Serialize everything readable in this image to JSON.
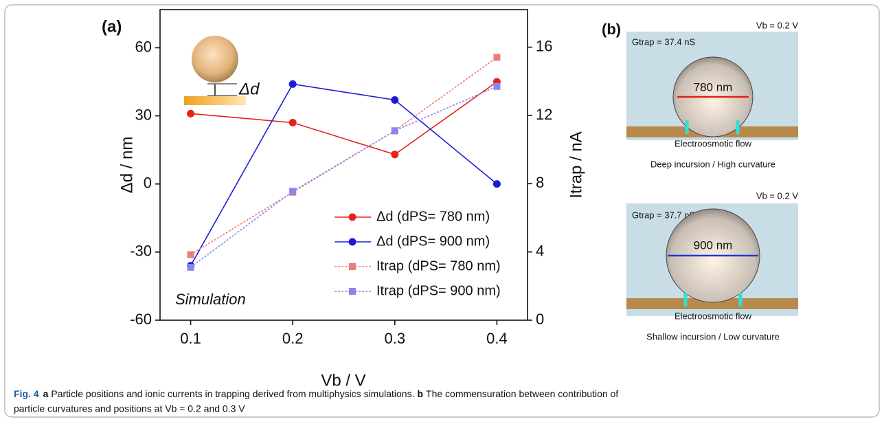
{
  "chart_data": {
    "type": "line",
    "panel_label": "(a)",
    "annotation": "Simulation",
    "inset_label": "Δd",
    "x_label": "Vb / V",
    "y_label": "Δd / nm",
    "y2_label": "Itrap / nA",
    "x": [
      0.1,
      0.2,
      0.3,
      0.4
    ],
    "xlim": [
      0.07,
      0.43
    ],
    "xticks": [
      0.1,
      0.2,
      0.3,
      0.4
    ],
    "ylim": [
      -60,
      76.8
    ],
    "yticks": [
      -60,
      -30,
      0,
      30,
      60
    ],
    "y2lim": [
      0,
      18.2
    ],
    "y2ticks": [
      0,
      4,
      8,
      12,
      16
    ],
    "series": [
      {
        "name": "Δd (dPS= 780 nm)",
        "color": "#e8211d",
        "marker": "circle",
        "line_style": "solid",
        "values": [
          31,
          27,
          13,
          45
        ]
      },
      {
        "name": "Δd (dPS= 900 nm)",
        "color": "#1c1cd8",
        "marker": "circle",
        "line_style": "solid",
        "values": [
          -36,
          44,
          37,
          0
        ]
      },
      {
        "name": "Itrap (dPS= 780 nm)",
        "color": "#f07a7a",
        "marker": "square",
        "line_style": "dashed",
        "axis": "y2",
        "values": [
          3.84,
          7.5,
          11.1,
          15.4
        ]
      },
      {
        "name": "Itrap (dPS= 900 nm)",
        "color": "#8a86ee",
        "marker": "square",
        "line_style": "dashed",
        "axis": "y2",
        "values": [
          3.1,
          7.55,
          11.1,
          13.7
        ]
      }
    ]
  },
  "panel_b": {
    "label": "(b)",
    "top": {
      "voltage": "Vb = 0.2 V",
      "conductance": "Gtrap = 37.4 nS",
      "diameter": "780 nm",
      "flow": "Electroosmotic flow",
      "caption": "Deep incursion / High curvature"
    },
    "bottom": {
      "voltage": "Vb = 0.2 V",
      "conductance": "Gtrap = 37.7 nS",
      "diameter": "900 nm",
      "flow": "Electroosmotic flow",
      "caption": "Shallow incursion / Low curvature"
    }
  },
  "caption": {
    "label": "Fig. 4",
    "a_label": "a",
    "a_text": "Particle positions and ionic currents in trapping derived from multiphysics simulations.",
    "b_label": "b",
    "b_text": [
      "The commensuration between contribution of",
      "particle curvatures and positions at Vb = 0.2 and 0.3 V"
    ]
  }
}
